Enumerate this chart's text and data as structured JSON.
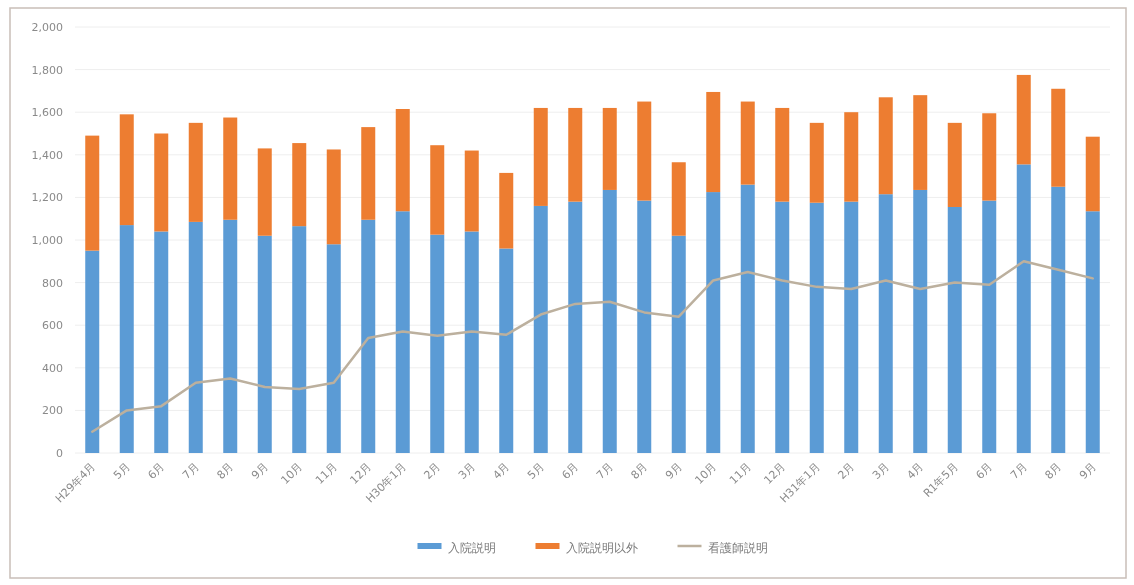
{
  "chart_data": {
    "type": "bar",
    "stacked": true,
    "grid": "y",
    "legend": "bottom",
    "categories": [
      "H29年4月",
      "5月",
      "6月",
      "7月",
      "8月",
      "9月",
      "10月",
      "11月",
      "12月",
      "H30年1月",
      "2月",
      "3月",
      "4月",
      "5月",
      "6月",
      "7月",
      "8月",
      "9月",
      "10月",
      "11月",
      "12月",
      "H31年1月",
      "2月",
      "3月",
      "4月",
      "R1年5月",
      "6月",
      "7月",
      "8月",
      "9月"
    ],
    "ylim": [
      0,
      2000
    ],
    "yticks": [
      0,
      200,
      400,
      600,
      800,
      {
        "value": 1000,
        "label": "1,000"
      },
      {
        "value": 1200,
        "label": "1,200"
      },
      {
        "value": 1400,
        "label": "1,400"
      },
      {
        "value": 1600,
        "label": "1,600"
      },
      {
        "value": 1800,
        "label": "1,800"
      },
      {
        "value": 2000,
        "label": "2,000"
      }
    ],
    "series": [
      {
        "name": "入院説明",
        "color": "#5b9bd5",
        "values": [
          950,
          1070,
          1040,
          1085,
          1095,
          1020,
          1065,
          980,
          1095,
          1135,
          1025,
          1040,
          960,
          1160,
          1180,
          1235,
          1185,
          1020,
          1225,
          1260,
          1180,
          1175,
          1180,
          1215,
          1235,
          1155,
          1185,
          1355,
          1250,
          1135
        ]
      },
      {
        "name": "入院説明以外",
        "color": "#ed7d31",
        "values": [
          540,
          520,
          460,
          465,
          480,
          410,
          390,
          445,
          435,
          480,
          420,
          380,
          355,
          460,
          440,
          385,
          465,
          345,
          470,
          390,
          440,
          375,
          420,
          455,
          445,
          395,
          410,
          420,
          460,
          350
        ]
      },
      {
        "name": "看護師説明",
        "type": "line",
        "color": "#bcb09e",
        "values": [
          100,
          200,
          220,
          330,
          350,
          310,
          300,
          330,
          540,
          570,
          550,
          570,
          555,
          650,
          700,
          710,
          660,
          640,
          810,
          850,
          810,
          780,
          770,
          810,
          770,
          800,
          790,
          900,
          860,
          820
        ]
      }
    ]
  }
}
